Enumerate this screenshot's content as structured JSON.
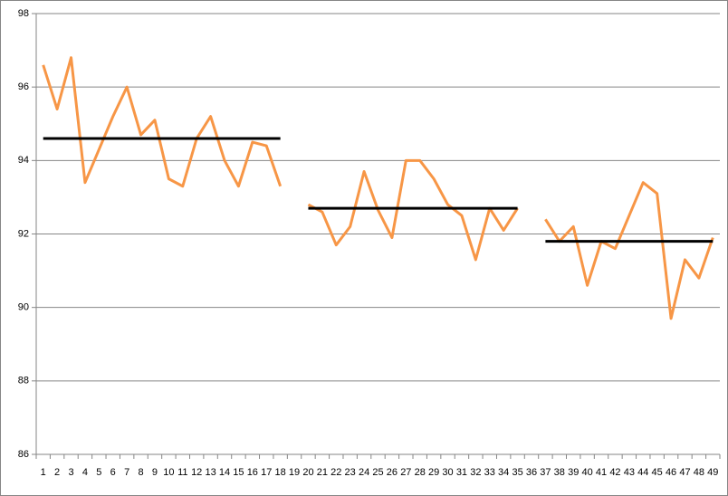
{
  "chart_data": {
    "type": "line",
    "categories": [
      1,
      2,
      3,
      4,
      5,
      6,
      7,
      8,
      9,
      10,
      11,
      12,
      13,
      14,
      15,
      16,
      17,
      18,
      19,
      20,
      21,
      22,
      23,
      24,
      25,
      26,
      27,
      28,
      29,
      30,
      31,
      32,
      33,
      34,
      35,
      36,
      37,
      38,
      39,
      40,
      41,
      42,
      43,
      44,
      45,
      46,
      47,
      48,
      49
    ],
    "series": [
      {
        "color": "#f79646",
        "values": [
          96.6,
          95.4,
          96.8,
          93.4,
          94.3,
          95.2,
          96.0,
          94.7,
          95.1,
          93.5,
          93.3,
          94.6,
          95.2,
          94.0,
          93.3,
          94.5,
          94.4,
          93.3,
          null,
          92.8,
          92.6,
          91.7,
          92.2,
          93.7,
          92.65,
          91.9,
          94.0,
          94.0,
          93.5,
          92.8,
          92.5,
          91.3,
          92.7,
          92.1,
          92.7,
          null,
          92.4,
          91.8,
          92.2,
          90.6,
          91.8,
          91.6,
          92.5,
          93.4,
          93.1,
          89.7,
          91.3,
          90.8,
          91.9
        ]
      },
      {
        "color": "#000000",
        "values": [
          94.6,
          94.6,
          94.6,
          94.6,
          94.6,
          94.6,
          94.6,
          94.6,
          94.6,
          94.6,
          94.6,
          94.6,
          94.6,
          94.6,
          94.6,
          94.6,
          94.6,
          94.6,
          null,
          92.7,
          92.7,
          92.7,
          92.7,
          92.7,
          92.7,
          92.7,
          92.7,
          92.7,
          92.7,
          92.7,
          92.7,
          92.7,
          92.7,
          92.7,
          92.7,
          null,
          91.8,
          91.8,
          91.8,
          91.8,
          91.8,
          91.8,
          91.8,
          91.8,
          91.8,
          91.8,
          91.8,
          91.8,
          91.8
        ]
      }
    ],
    "ylim": [
      86,
      98
    ],
    "yticks": [
      86,
      88,
      90,
      92,
      94,
      96,
      98
    ],
    "grid": true
  }
}
